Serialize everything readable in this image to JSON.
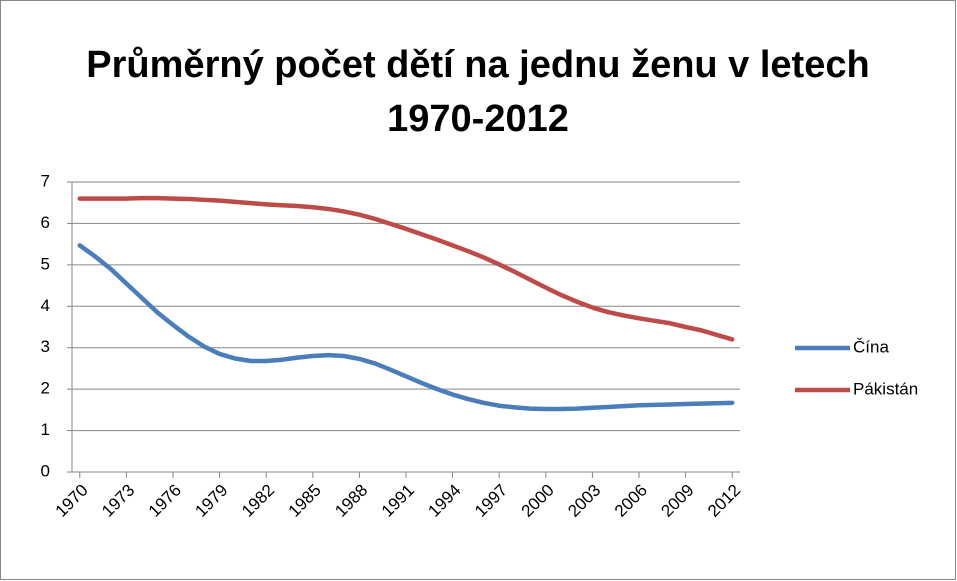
{
  "chart_data": {
    "type": "line",
    "title": "Průměrný počet dětí na jednu ženu v letech 1970-2012",
    "x": [
      1970,
      1971,
      1972,
      1973,
      1974,
      1975,
      1976,
      1977,
      1978,
      1979,
      1980,
      1981,
      1982,
      1983,
      1984,
      1985,
      1986,
      1987,
      1988,
      1989,
      1990,
      1991,
      1992,
      1993,
      1994,
      1995,
      1996,
      1997,
      1998,
      1999,
      2000,
      2001,
      2002,
      2003,
      2004,
      2005,
      2006,
      2007,
      2008,
      2009,
      2010,
      2011,
      2012
    ],
    "series": [
      {
        "name": "Čína",
        "color": "#4a7ebb",
        "values": [
          5.47,
          5.2,
          4.9,
          4.55,
          4.2,
          3.85,
          3.55,
          3.27,
          3.03,
          2.85,
          2.74,
          2.68,
          2.68,
          2.71,
          2.76,
          2.8,
          2.82,
          2.8,
          2.73,
          2.62,
          2.47,
          2.31,
          2.15,
          2.0,
          1.87,
          1.76,
          1.67,
          1.6,
          1.56,
          1.53,
          1.52,
          1.52,
          1.53,
          1.55,
          1.57,
          1.59,
          1.61,
          1.62,
          1.63,
          1.64,
          1.65,
          1.66,
          1.67
        ]
      },
      {
        "name": "Pákistán",
        "color": "#be4b48",
        "values": [
          6.6,
          6.6,
          6.6,
          6.6,
          6.61,
          6.61,
          6.6,
          6.59,
          6.57,
          6.55,
          6.52,
          6.49,
          6.46,
          6.44,
          6.42,
          6.39,
          6.35,
          6.29,
          6.21,
          6.11,
          5.99,
          5.87,
          5.74,
          5.61,
          5.47,
          5.33,
          5.18,
          5.01,
          4.83,
          4.64,
          4.45,
          4.27,
          4.11,
          3.97,
          3.86,
          3.78,
          3.71,
          3.65,
          3.59,
          3.5,
          3.42,
          3.31,
          3.2
        ]
      }
    ],
    "xlim": [
      1969.5,
      2012.5
    ],
    "xticks": [
      1970,
      1973,
      1976,
      1979,
      1982,
      1985,
      1988,
      1991,
      1994,
      1997,
      2000,
      2003,
      2006,
      2009,
      2012
    ],
    "ylim": [
      0,
      7
    ],
    "yticks": [
      0,
      1,
      2,
      3,
      4,
      5,
      6,
      7
    ],
    "grid": true,
    "legend": "right"
  }
}
